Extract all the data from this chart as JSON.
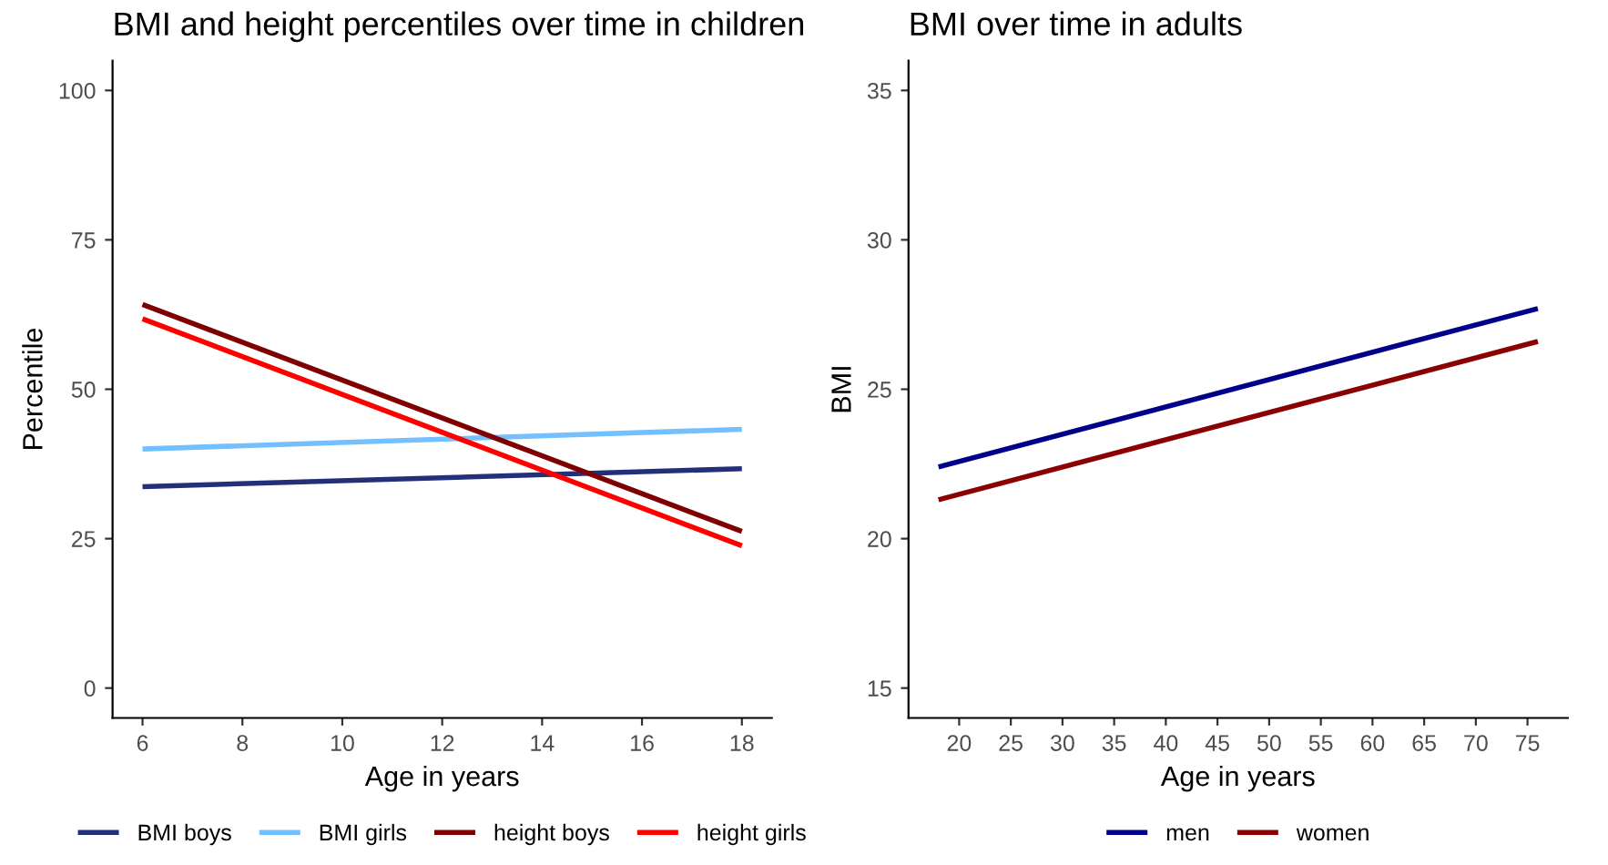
{
  "chart_data": [
    {
      "type": "line",
      "title": "BMI and height percentiles over time in children",
      "xlabel": "Age in years",
      "ylabel": "Percentile",
      "xlim": [
        5.4,
        18.6
      ],
      "xticks": [
        6,
        8,
        10,
        12,
        14,
        16,
        18
      ],
      "ylim": [
        -5,
        105
      ],
      "yticks": [
        0,
        25,
        50,
        75,
        100
      ],
      "grid": false,
      "legend": "bottom",
      "series": [
        {
          "name": "BMI boys",
          "color": "#233079",
          "x": [
            6,
            18
          ],
          "values": [
            33.7,
            36.7
          ]
        },
        {
          "name": "BMI girls",
          "color": "#74c0ff",
          "x": [
            6,
            18
          ],
          "values": [
            40,
            43.3
          ]
        },
        {
          "name": "height boys",
          "color": "#7f0000",
          "x": [
            6,
            18
          ],
          "values": [
            64.2,
            26.2
          ]
        },
        {
          "name": "height girls",
          "color": "#ff0000",
          "x": [
            6,
            18
          ],
          "values": [
            61.8,
            23.8
          ]
        }
      ]
    },
    {
      "type": "line",
      "title": "BMI over time in adults",
      "xlabel": "Age in years",
      "ylabel": "BMI",
      "xlim": [
        15.1,
        78.9
      ],
      "xticks": [
        20,
        25,
        30,
        35,
        40,
        45,
        50,
        55,
        60,
        65,
        70,
        75
      ],
      "ylim": [
        14,
        36
      ],
      "yticks": [
        15,
        20,
        25,
        30,
        35
      ],
      "grid": false,
      "legend": "bottom",
      "series": [
        {
          "name": "men",
          "color": "#00008b",
          "x": [
            18,
            76
          ],
          "values": [
            22.4,
            27.7
          ]
        },
        {
          "name": "women",
          "color": "#8b0000",
          "x": [
            18,
            76
          ],
          "values": [
            21.3,
            26.6
          ]
        }
      ]
    }
  ]
}
